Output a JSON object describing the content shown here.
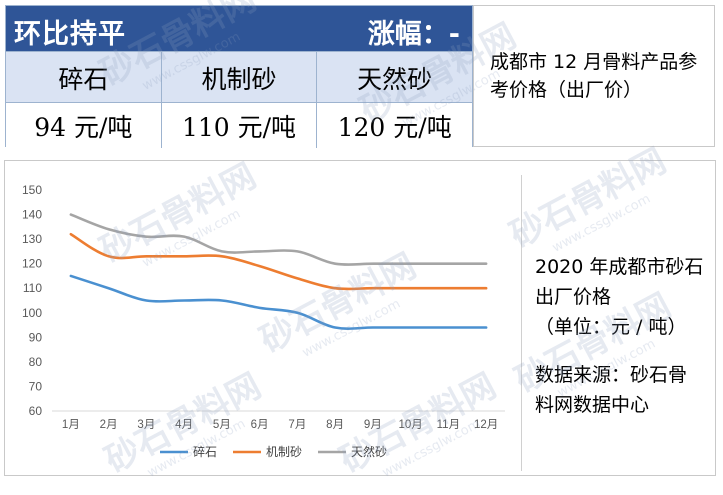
{
  "price_table": {
    "trend_label": "环比持平",
    "change_label": "涨幅：-",
    "products": [
      "碎石",
      "机制砂",
      "天然砂"
    ],
    "prices": [
      "94 元/吨",
      "110 元/吨",
      "120 元/吨"
    ]
  },
  "reference_note": "成都市 12 月骨料产品参考价格（出厂价）",
  "side_panel": {
    "title": "2020 年成都市砂石出厂价格",
    "unit": "（单位：元 / 吨）",
    "source": "数据来源：砂石骨料网数据中心"
  },
  "watermark": {
    "text": "砂石骨料网",
    "url": "www.cssglw.com"
  },
  "colors": {
    "header_bg": "#2f5597",
    "names_bg": "#dae3f3",
    "series": [
      "#4a90d0",
      "#ed7d31",
      "#a5a5a5"
    ]
  },
  "chart_data": {
    "type": "line",
    "categories": [
      "1月",
      "2月",
      "3月",
      "4月",
      "5月",
      "6月",
      "7月",
      "8月",
      "9月",
      "10月",
      "11月",
      "12月"
    ],
    "ylim": [
      60,
      150
    ],
    "yticks": [
      60,
      70,
      80,
      90,
      100,
      110,
      120,
      130,
      140,
      150
    ],
    "grid": false,
    "legend": "bottom",
    "smooth": true,
    "series": [
      {
        "name": "碎石",
        "color": "#4a90d0",
        "values": [
          115,
          110,
          105,
          105,
          105,
          102,
          100,
          94,
          94,
          94,
          94,
          94
        ]
      },
      {
        "name": "机制砂",
        "color": "#ed7d31",
        "values": [
          132,
          123,
          123,
          123,
          123,
          119,
          114,
          110,
          110,
          110,
          110,
          110
        ]
      },
      {
        "name": "天然砂",
        "color": "#a5a5a5",
        "values": [
          140,
          134,
          131,
          131,
          125,
          125,
          125,
          120,
          120,
          120,
          120,
          120
        ]
      }
    ]
  }
}
